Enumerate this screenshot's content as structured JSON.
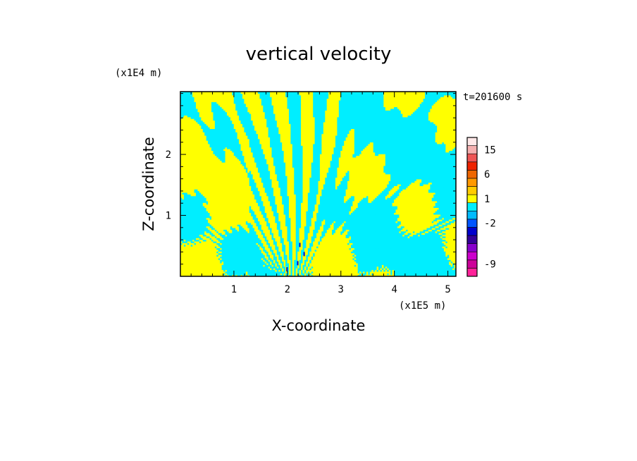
{
  "chart_data": {
    "type": "heatmap",
    "title": "vertical velocity",
    "xlabel": "X-coordinate",
    "ylabel": "Z-coordinate",
    "x_unit": "(x1E5 m)",
    "y_unit": "(x1E4 m)",
    "time_label": "t=201600 s",
    "xlim": [
      0,
      5.15
    ],
    "ylim": [
      0,
      3.03
    ],
    "x_ticks": [
      1,
      2,
      3,
      4,
      5
    ],
    "y_ticks": [
      1,
      2
    ],
    "colors": {
      "positive_small": "#ffff00",
      "negative_small": "#00eeff",
      "frame": "#000000"
    },
    "colorbar": {
      "levels": [
        {
          "color": "#ff2299",
          "tick": ""
        },
        {
          "color": "#cc0099",
          "tick": "-9"
        },
        {
          "color": "#cc00cc",
          "tick": ""
        },
        {
          "color": "#8800cc",
          "tick": ""
        },
        {
          "color": "#330099",
          "tick": ""
        },
        {
          "color": "#0000cc",
          "tick": ""
        },
        {
          "color": "#0055ff",
          "tick": "-2"
        },
        {
          "color": "#00bbff",
          "tick": ""
        },
        {
          "color": "#00eeff",
          "tick": ""
        },
        {
          "color": "#ffff00",
          "tick": "1"
        },
        {
          "color": "#ffcc00",
          "tick": ""
        },
        {
          "color": "#ff9900",
          "tick": ""
        },
        {
          "color": "#ee6600",
          "tick": "6"
        },
        {
          "color": "#ee2200",
          "tick": ""
        },
        {
          "color": "#ee5555",
          "tick": ""
        },
        {
          "color": "#f5b0b0",
          "tick": "15"
        },
        {
          "color": "#ffe8e8",
          "tick": ""
        }
      ]
    },
    "field_description_values": {
      "wave_center_x": 2.1,
      "dominant_sign_left": "positive",
      "dominant_sign_right": "negative"
    }
  }
}
